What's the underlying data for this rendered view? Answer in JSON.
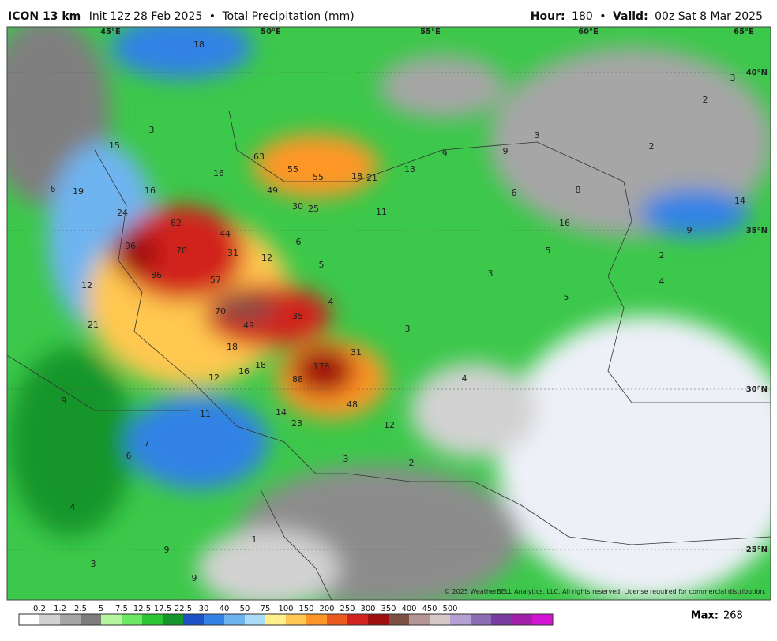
{
  "header": {
    "model": "ICON 13 km",
    "init": "Init 12z 28 Feb 2025",
    "product": "Total Precipitation (mm)",
    "hour_label": "Hour:",
    "hour": "180",
    "valid_label": "Valid:",
    "valid": "00z Sat 8 Mar 2025"
  },
  "map": {
    "longitude_labels": [
      "45°E",
      "50°E",
      "55°E",
      "60°E",
      "65°E"
    ],
    "latitude_labels": [
      "40°N",
      "35°N",
      "30°N",
      "25°N"
    ],
    "precip_labels": [
      18,
      3,
      15,
      6,
      19,
      24,
      16,
      16,
      63,
      55,
      55,
      18,
      21,
      13,
      49,
      30,
      25,
      11,
      62,
      44,
      96,
      70,
      31,
      12,
      6,
      5,
      12,
      86,
      57,
      4,
      70,
      49,
      35,
      21,
      18,
      31,
      3,
      16,
      18,
      178,
      12,
      88,
      4,
      9,
      11,
      14,
      48,
      12,
      23,
      6,
      7,
      3,
      2,
      4,
      1,
      9,
      3,
      9,
      9,
      9,
      3,
      6,
      8,
      16,
      5,
      5,
      3,
      2,
      2,
      3,
      14,
      9,
      2,
      4
    ],
    "copyright": "© 2025 WeatherBELL Analytics, LLC. All rights reserved. License required for commercial distribution."
  },
  "colorbar": {
    "labels": [
      0.2,
      1.2,
      2.5,
      5,
      7.5,
      12.5,
      17.5,
      22.5,
      30,
      40,
      50,
      75,
      100,
      150,
      200,
      250,
      300,
      350,
      400,
      450,
      500
    ],
    "colors": [
      "#ffffff",
      "#d2d2d2",
      "#a6a6a6",
      "#7c7c7c",
      "#b4f59e",
      "#6ee864",
      "#2cc634",
      "#14962a",
      "#1e50c8",
      "#3282e6",
      "#6eb4f0",
      "#aadcf8",
      "#fff08c",
      "#ffc850",
      "#ff9628",
      "#eb5a1e",
      "#d2231e",
      "#a00f0f",
      "#7d5046",
      "#b49696",
      "#d7c8c8",
      "#b4a0d2",
      "#8c6eb4",
      "#783ca0",
      "#a01eaa",
      "#d214d2"
    ]
  },
  "max_label": "Max:",
  "max": "268"
}
